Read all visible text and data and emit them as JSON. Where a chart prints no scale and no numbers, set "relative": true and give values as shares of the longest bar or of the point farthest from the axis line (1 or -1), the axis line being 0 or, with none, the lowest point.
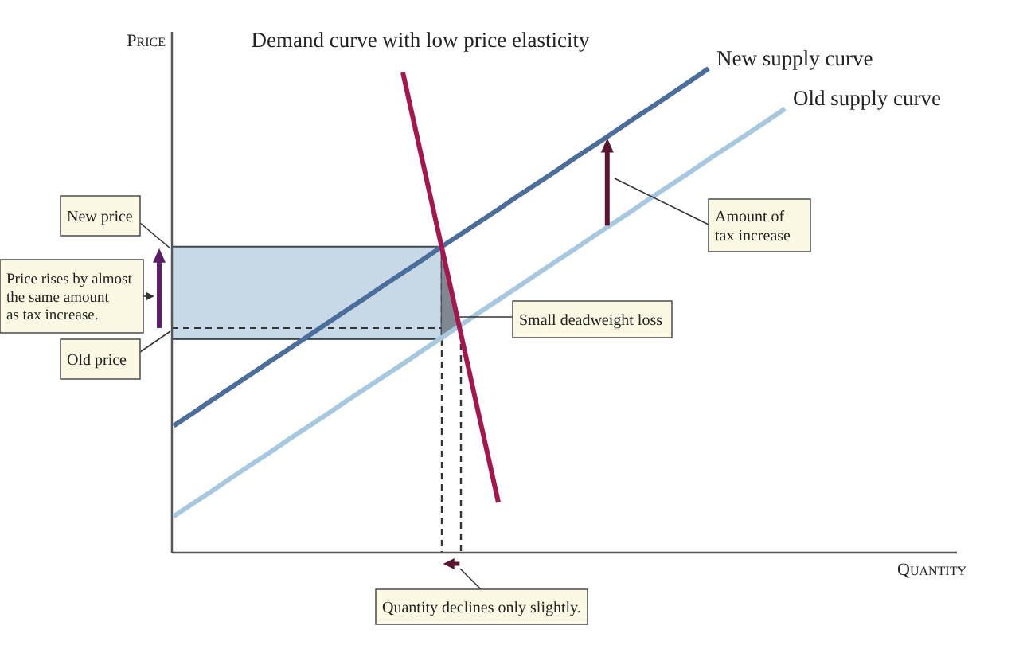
{
  "chart_data": {
    "type": "line",
    "relative": true,
    "categories": [
      null,
      null,
      null,
      null,
      null,
      null,
      null,
      null,
      null,
      null,
      null,
      null,
      null,
      null,
      null,
      null,
      null,
      null,
      null,
      null,
      null,
      null,
      null,
      null,
      null,
      null,
      null,
      null,
      null,
      null,
      null,
      null,
      null,
      null,
      null,
      null,
      null,
      null,
      null,
      null,
      null,
      null
    ],
    "series": [
      {
        "name": "Demand curve with low price elasticity",
        "color": "#a3174e",
        "values": [
          null,
          null,
          null,
          null,
          null,
          null,
          null,
          null,
          null,
          null,
          null,
          null,
          0.992,
          0.814,
          0.637,
          0.459,
          0.281,
          0.104,
          null,
          null,
          null,
          null,
          null,
          null,
          null,
          null,
          null,
          null,
          null,
          null,
          null,
          null,
          null,
          null,
          null,
          null,
          null,
          null,
          null,
          null,
          null,
          null
        ]
      },
      {
        "name": "New supply curve",
        "color": "#4a6d9c",
        "values": [
          0.262,
          0.288,
          0.315,
          0.341,
          0.367,
          0.394,
          0.42,
          0.446,
          0.473,
          0.499,
          0.525,
          0.552,
          0.578,
          0.604,
          0.631,
          0.657,
          0.683,
          0.709,
          0.736,
          0.762,
          0.788,
          0.815,
          0.841,
          0.867,
          0.894,
          0.92,
          0.946,
          0.973,
          1,
          null,
          null,
          null,
          null,
          null,
          null,
          null,
          null,
          null,
          null,
          null,
          null,
          null
        ]
      },
      {
        "name": "Old supply curve",
        "color": "#a8c8df",
        "values": [
          0.075,
          0.101,
          0.127,
          0.154,
          0.18,
          0.206,
          0.233,
          0.259,
          0.285,
          0.312,
          0.338,
          0.364,
          0.39,
          0.417,
          0.443,
          0.469,
          0.496,
          0.522,
          0.548,
          0.575,
          0.601,
          0.627,
          0.654,
          0.68,
          0.706,
          0.733,
          0.759,
          0.785,
          0.812,
          0.838,
          0.864,
          0.89,
          0.917,
          null,
          null,
          null,
          null,
          null,
          null,
          null,
          null,
          null
        ]
      }
    ],
    "xlabel": "Quantity",
    "ylabel": "Price",
    "bands": [
      {
        "axis": "y",
        "from": 0.441,
        "to": 0.632,
        "color": "#c9d8e7"
      }
    ],
    "ref_lines": [
      {
        "axis": "y",
        "value": 0.464,
        "color": "#333333",
        "line_style": "dashed"
      }
    ],
    "annotations": [
      "New price",
      "Price rises by almost\nthe same amount\nas tax increase.",
      "Old price",
      "Amount of\ntax increase",
      "Small deadweight loss",
      "Quantity declines only slightly."
    ]
  }
}
